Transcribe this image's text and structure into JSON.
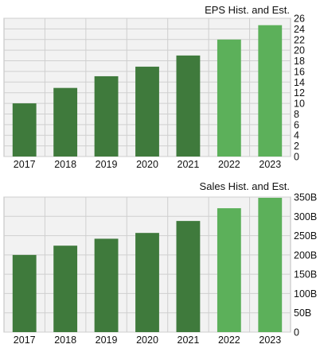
{
  "chart_data": [
    {
      "type": "bar",
      "title": "EPS Hist. and Est.",
      "categories": [
        "2017",
        "2018",
        "2019",
        "2020",
        "2021",
        "2022",
        "2023"
      ],
      "values": [
        10.0,
        12.9,
        15.1,
        16.9,
        19.0,
        22.0,
        24.7
      ],
      "estimate_from_index": 5,
      "yticks": [
        "0",
        "2",
        "4",
        "6",
        "8",
        "10",
        "12",
        "14",
        "16",
        "18",
        "20",
        "22",
        "24",
        "26"
      ],
      "ylim": [
        0,
        26
      ],
      "grid": true,
      "colors": {
        "historical": "#3f7a3c",
        "estimate": "#5cb05a",
        "grid": "#cfcfcf",
        "plot_bg": "#f2f2f2"
      }
    },
    {
      "type": "bar",
      "title": "Sales Hist. and Est.",
      "categories": [
        "2017",
        "2018",
        "2019",
        "2020",
        "2021",
        "2022",
        "2023"
      ],
      "values": [
        200,
        224,
        242,
        257,
        288,
        321,
        348
      ],
      "estimate_from_index": 5,
      "yticks": [
        "0",
        "50B",
        "100B",
        "150B",
        "200B",
        "250B",
        "300B",
        "350B"
      ],
      "ylim": [
        0,
        350
      ],
      "grid": true,
      "colors": {
        "historical": "#3f7a3c",
        "estimate": "#5cb05a",
        "grid": "#cfcfcf",
        "plot_bg": "#f2f2f2"
      }
    }
  ]
}
